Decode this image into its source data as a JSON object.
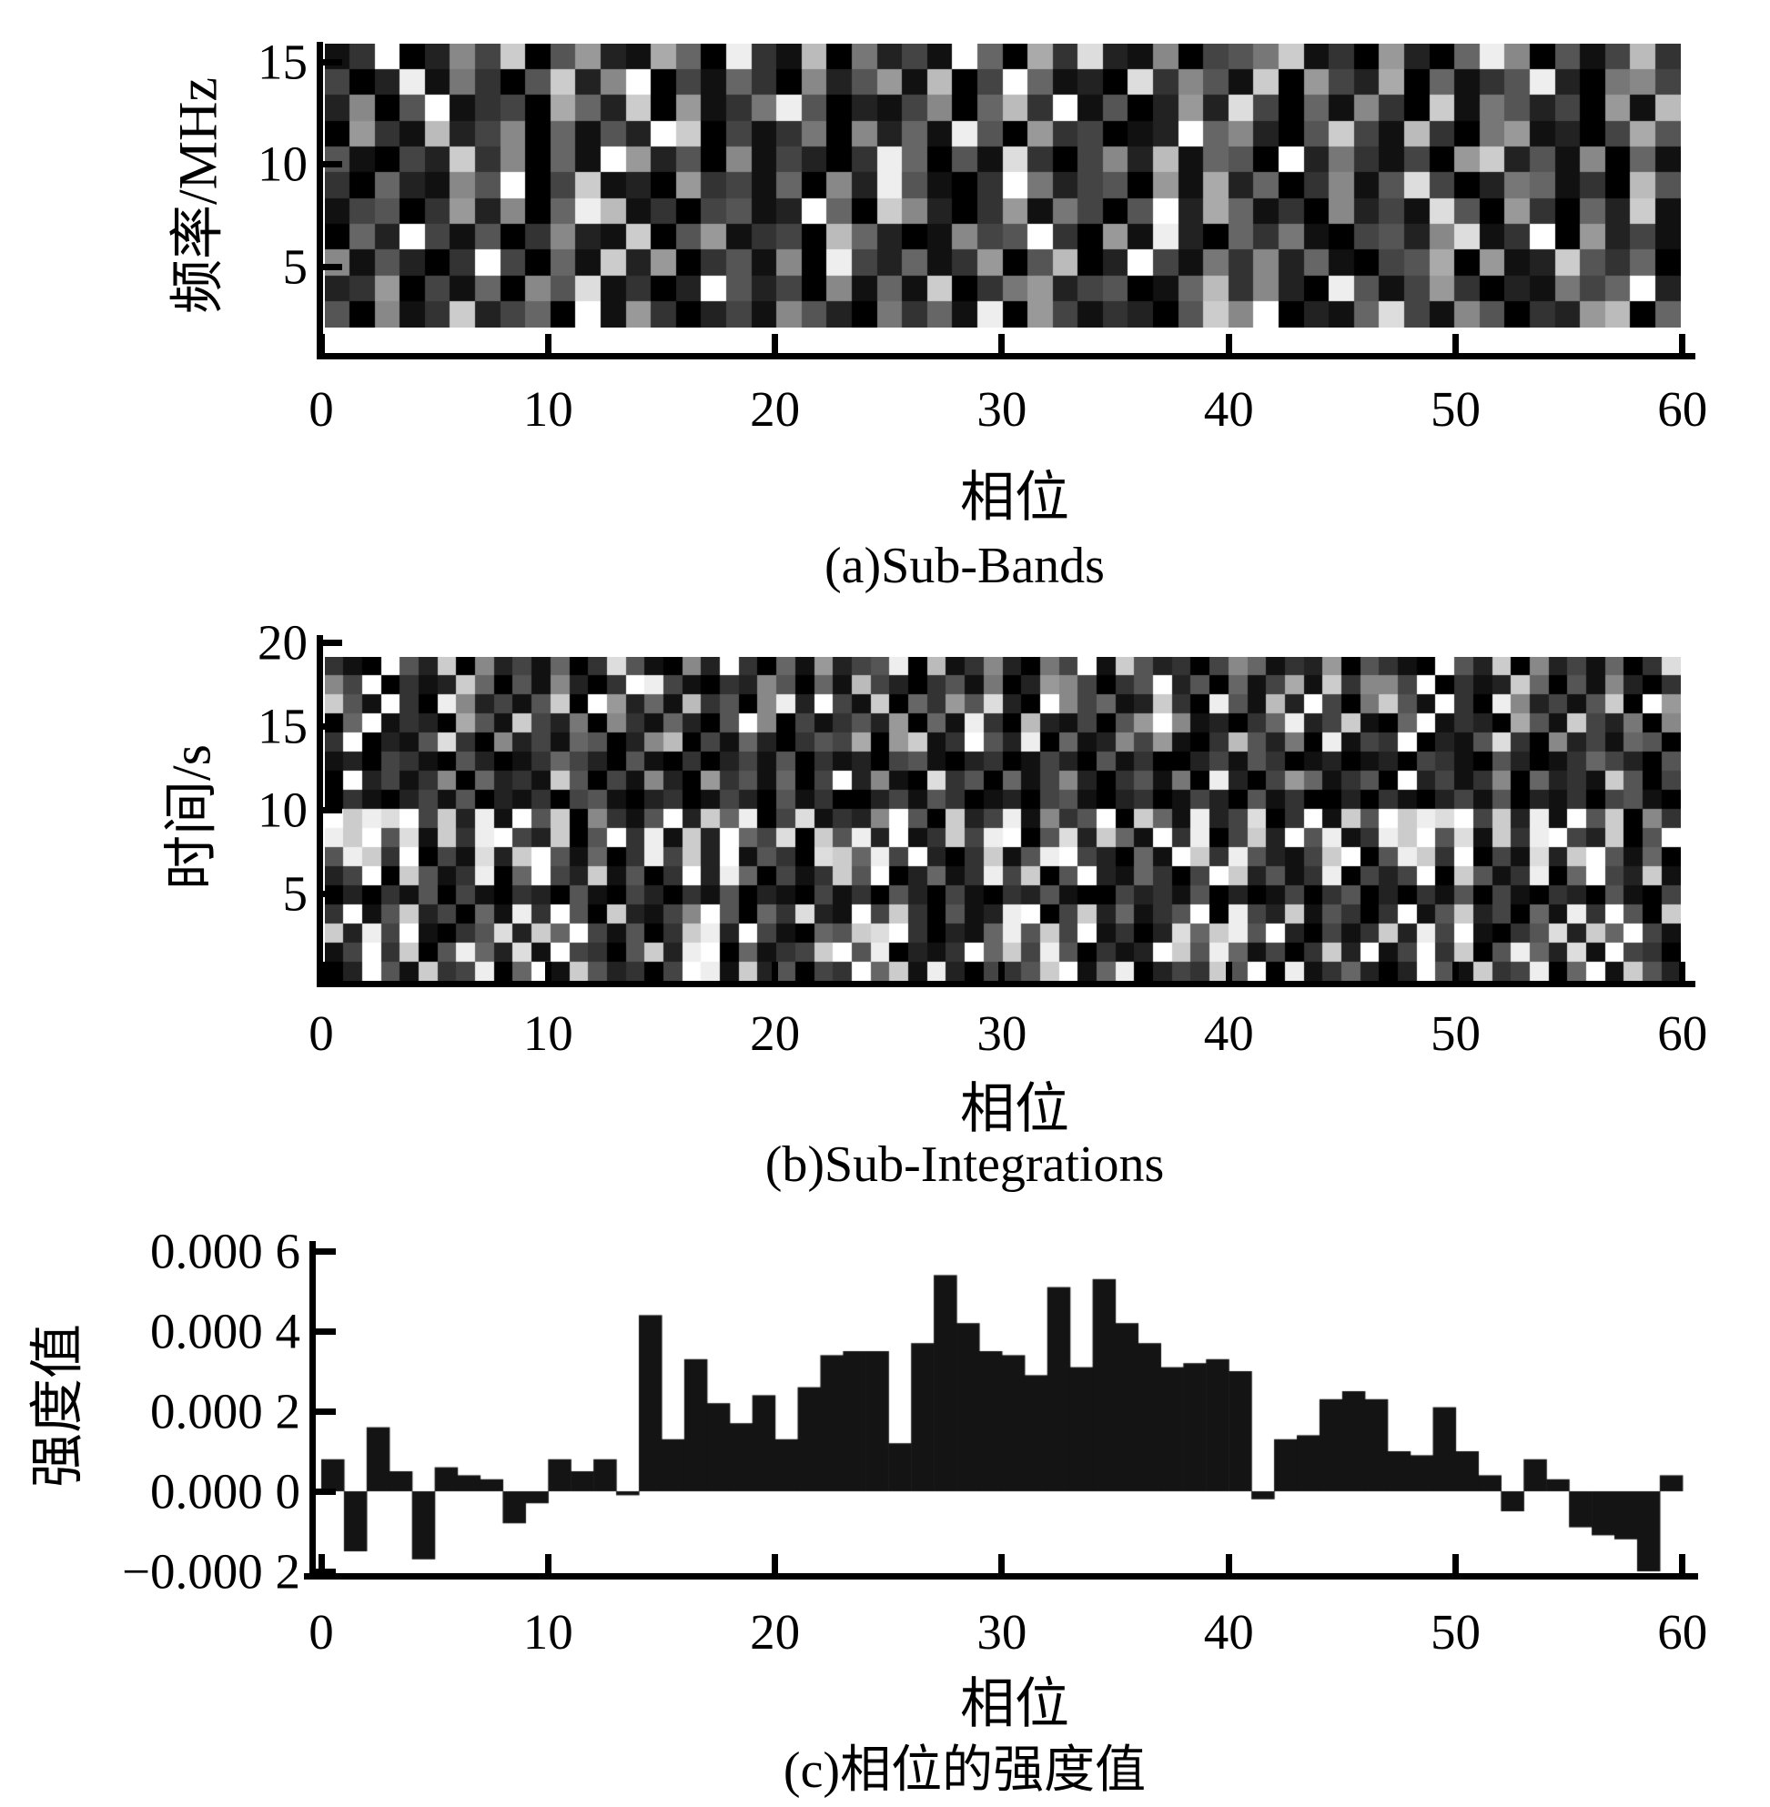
{
  "figure": {
    "bg": "#ffffff",
    "ink": "#000000",
    "bar_color": "#141414"
  },
  "chart_data": [
    {
      "type": "heatmap",
      "panel": "a",
      "title": "(a)Sub-Bands",
      "xlabel": "相位",
      "ylabel": "频率/MHz",
      "xlim": [
        0,
        60
      ],
      "ylim": [
        0,
        16
      ],
      "xticks": [
        0,
        10,
        20,
        30,
        40,
        50,
        60
      ],
      "xtick_labels": [
        "0",
        "10",
        "20",
        "30",
        "40",
        "50",
        "60"
      ],
      "yticks": [
        15,
        10,
        5
      ],
      "ytick_labels": [
        "15",
        "10",
        "5"
      ],
      "grid": {
        "cols": 54,
        "rows": 11
      },
      "palette": "hex char 0=black .. f=white, random noise pattern",
      "cells": [
        "13f0284c05921a60e31b07241f60a3d2180457c1309206e80514b327",
        "402e17305c28f04163082591b04f6120d3851c0942a06135e2078413",
        "2805f1340a62c09137e50214806b3f150292d4061830c17524091b6f",
        "0931b24806152fc0413708261e50934012f68205c41b30791204a513",
        "51042c38061f9250814203e6051d30482b1650f2731409c251806134",
        "3062185f04c12093416082e5103f7245091a2603815d40276130b508",
        "1450392806eb1304512f60c8203917405f2a61308241d5093062c184",
        "062f41503821c0591340b6201845f3091e20637104528d13f0924160",
        "815203f4061c29035180e42613905b02f41738261045a0912c536087",
        "2390416085d1302f52408161c0379245016b3820e51493021746f250",
        "50813c2460f193024185207361e09413205c8f0216d41850329b0614"
      ]
    },
    {
      "type": "heatmap",
      "panel": "b",
      "title": "(b)Sub-Integrations",
      "xlabel": "相位",
      "ylabel": "时间/s",
      "xlim": [
        0,
        60
      ],
      "ylim": [
        0,
        20
      ],
      "xticks": [
        0,
        10,
        20,
        30,
        40,
        50,
        60
      ],
      "xtick_labels": [
        "0",
        "10",
        "20",
        "30",
        "40",
        "50",
        "60"
      ],
      "yticks": [
        20,
        15,
        10,
        5
      ],
      "ytick_labels": [
        "20",
        "15",
        "10",
        "5"
      ],
      "grid": {
        "cols": 72,
        "rows": 17
      },
      "palette": "hex char 0=black .. f=white, random noise pattern",
      "cells": [
        "310f52c08241603d51082f30619245e0b1382074f1c5230486132905",
        "84f0312c60518203fe4103285061b420351702984035f250614a1c38",
        "c51f30e82415c0f9261b3508e2f41c06395d20f84612c30e51b2f407",
        "06f1320a51c42708316205f80413529061e30b214059f812036e24c1",
        "3f0215d30824165028b041620354a09c13f52e0612849103b5270e14",
        "1204310520136420510302415031204510230142051300241530120",
        "0f2413806231c50418209351604f2810d35061482035170e20496135",
        "0310241502130451023014205130024153012045102301420513002",
        "fcedf4c2e1f5c08315f2c6e04d1328f50c24e1835f0c61e24d03f1c5",
        "ecf5d1c3ef42c05f3e1c2f64d0c5e2f13c4ef05d2c61f3e04c2f5e13",
        "5ec3f041d2cf51603e4c2f1530dc6e4f203c15ef42061fc3e5214cf0",
        "24f0c513e06f42c1503f2e60413c5f02613e4c05f216304fc2513e04",
        "0203150410320510420315021041305204103251004231502014035",
        "3f15c24061e3f50c2148f5063d21f4c30512ef04c26135f0e42c1530",
        "c2e4f1035d2c6f41503ce2f41065cdf30216e5c4f1302d6ce5f20413",
        "14f3c05e62d1f4305c2ef06134cf5e0213f6c4e50312fc5e61403c2f",
        "02f51c34e06f1c52304fe1c25043f6c1e20435cf16e0243c5f0e1362"
      ]
    },
    {
      "type": "bar",
      "panel": "c",
      "title": "(c)相位的强度值",
      "xlabel": "相位",
      "ylabel": "强度值",
      "xlim": [
        0,
        60
      ],
      "ylim": [
        -0.0002,
        0.0006
      ],
      "xticks": [
        0,
        10,
        20,
        30,
        40,
        50,
        60
      ],
      "xtick_labels": [
        "0",
        "10",
        "20",
        "30",
        "40",
        "50",
        "60"
      ],
      "ytick_values": [
        0.0006,
        0.0004,
        0.0002,
        0.0,
        -0.0002
      ],
      "ytick_labels": [
        "0.000 6",
        "0.000 4",
        "0.000 2",
        "0.000 0",
        "−0.000 2"
      ],
      "x_start": 0,
      "x_step": 1,
      "values": [
        8e-05,
        -0.00015,
        0.00016,
        5e-05,
        -0.00017,
        6e-05,
        4e-05,
        3e-05,
        -8e-05,
        -3e-05,
        8e-05,
        5e-05,
        8e-05,
        -1e-05,
        0.00044,
        0.00013,
        0.00033,
        0.00022,
        0.00017,
        0.00024,
        0.00013,
        0.00026,
        0.00034,
        0.00035,
        0.00035,
        0.00012,
        0.00037,
        0.00054,
        0.00042,
        0.00035,
        0.00034,
        0.00029,
        0.00051,
        0.00031,
        0.00053,
        0.00042,
        0.00037,
        0.00031,
        0.00032,
        0.00033,
        0.0003,
        -2e-05,
        0.00013,
        0.00014,
        0.00023,
        0.00025,
        0.00023,
        0.0001,
        9e-05,
        0.00021,
        0.0001,
        4e-05,
        -5e-05,
        8e-05,
        3e-05,
        -9e-05,
        -0.00011,
        -0.00012,
        -0.0002,
        4e-05
      ]
    }
  ]
}
